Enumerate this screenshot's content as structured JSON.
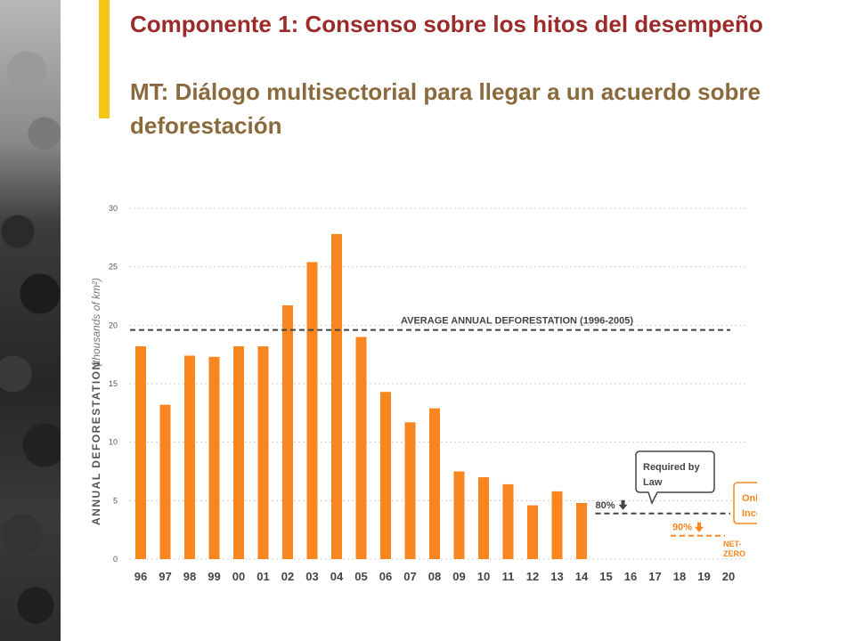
{
  "slide": {
    "title_line1": "Componente 1: Consenso sobre los hitos del desempeño",
    "title_line2": "MT: Diálogo multisectorial para llegar a un acuerdo sobre deforestación",
    "accent_color": "#f5c518",
    "title_color": "#9b2a2a",
    "subtitle_color": "#8a6a3c"
  },
  "chart_data": {
    "type": "bar",
    "ylabel": "ANNUAL DEFORESTATION",
    "ylabel_unit": "(thousands of km²)",
    "ylim": [
      0,
      30
    ],
    "yticks": [
      0,
      5,
      10,
      15,
      20,
      25,
      30
    ],
    "grid": true,
    "categories": [
      "96",
      "97",
      "98",
      "99",
      "00",
      "01",
      "02",
      "03",
      "04",
      "05",
      "06",
      "07",
      "08",
      "09",
      "10",
      "11",
      "12",
      "13",
      "14",
      "15",
      "16",
      "17",
      "18",
      "19",
      "20"
    ],
    "values": [
      18.2,
      13.2,
      17.4,
      17.3,
      18.2,
      18.2,
      21.7,
      25.4,
      27.8,
      19.0,
      14.3,
      11.7,
      12.9,
      7.5,
      7.0,
      6.4,
      4.6,
      5.8,
      4.8,
      null,
      null,
      null,
      null,
      null,
      null
    ],
    "bar_color": "#f7861f",
    "reference_lines": [
      {
        "label": "AVERAGE ANNUAL DEFORESTATION (1996-2005)",
        "value": 19.6,
        "x_start": "96",
        "x_end": "20",
        "color": "#444444"
      },
      {
        "label": "80%",
        "value": 3.9,
        "x_start": "15",
        "x_end": "20",
        "color": "#444444"
      },
      {
        "label": "90%",
        "value": 2.0,
        "x_start": "18",
        "x_end": "20",
        "color": "#f7861f"
      }
    ],
    "annotations": [
      {
        "text_line1": "Required by",
        "text_line2": "Law",
        "color": "#444444"
      },
      {
        "text_line1": "Only with",
        "text_line2": "Incentives",
        "color": "#f7861f"
      },
      {
        "text_line1": "NET-",
        "text_line2": "ZERO",
        "color": "#f7861f"
      }
    ]
  }
}
